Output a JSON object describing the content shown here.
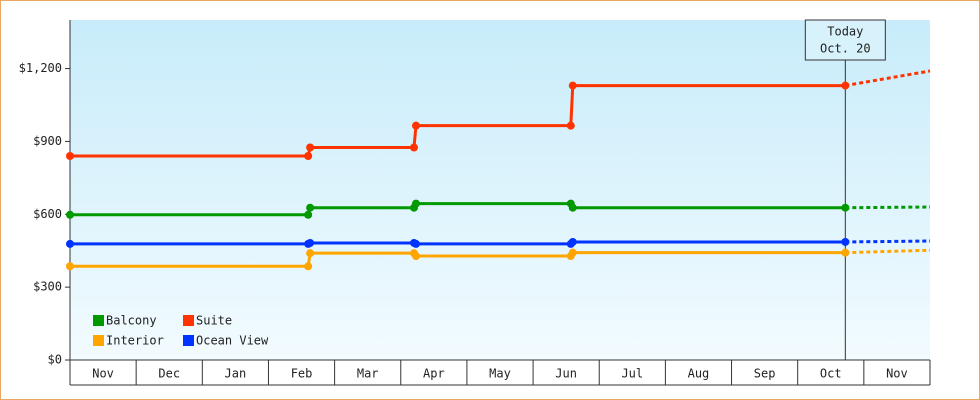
{
  "chart_data": {
    "type": "line",
    "categories": [
      "Nov",
      "Dec",
      "Jan",
      "Feb",
      "Mar",
      "Apr",
      "May",
      "Jun",
      "Jul",
      "Aug",
      "Sep",
      "Oct",
      "Nov"
    ],
    "x": [
      0,
      3.6,
      3.63,
      5.2,
      5.23,
      7.57,
      7.6,
      11.72
    ],
    "forecast_x": [
      11.72,
      13
    ],
    "xlim": [
      0,
      13
    ],
    "ylim": [
      0,
      1400
    ],
    "yticks": [
      {
        "value": 0,
        "label": "$0"
      },
      {
        "value": 300,
        "label": "$300"
      },
      {
        "value": 600,
        "label": "$600"
      },
      {
        "value": 900,
        "label": "$900"
      },
      {
        "value": 1200,
        "label": "$1,200"
      }
    ],
    "series": [
      {
        "name": "Balcony",
        "color": "#009900",
        "values": [
          598,
          598,
          627,
          627,
          644,
          644,
          627,
          627
        ],
        "forecast": [
          627,
          630
        ]
      },
      {
        "name": "Suite",
        "color": "#ff3300",
        "values": [
          840,
          840,
          875,
          875,
          965,
          965,
          1130,
          1130
        ],
        "forecast": [
          1130,
          1190
        ]
      },
      {
        "name": "Interior",
        "color": "#ffa500",
        "values": [
          386,
          386,
          440,
          440,
          428,
          428,
          442,
          442
        ],
        "forecast": [
          442,
          452
        ]
      },
      {
        "name": "Ocean View",
        "color": "#0033ff",
        "values": [
          478,
          478,
          482,
          482,
          478,
          478,
          486,
          486
        ],
        "forecast": [
          486,
          490
        ]
      }
    ],
    "annotation": {
      "x": 11.72,
      "lines": [
        "Today",
        "Oct. 20"
      ]
    }
  }
}
